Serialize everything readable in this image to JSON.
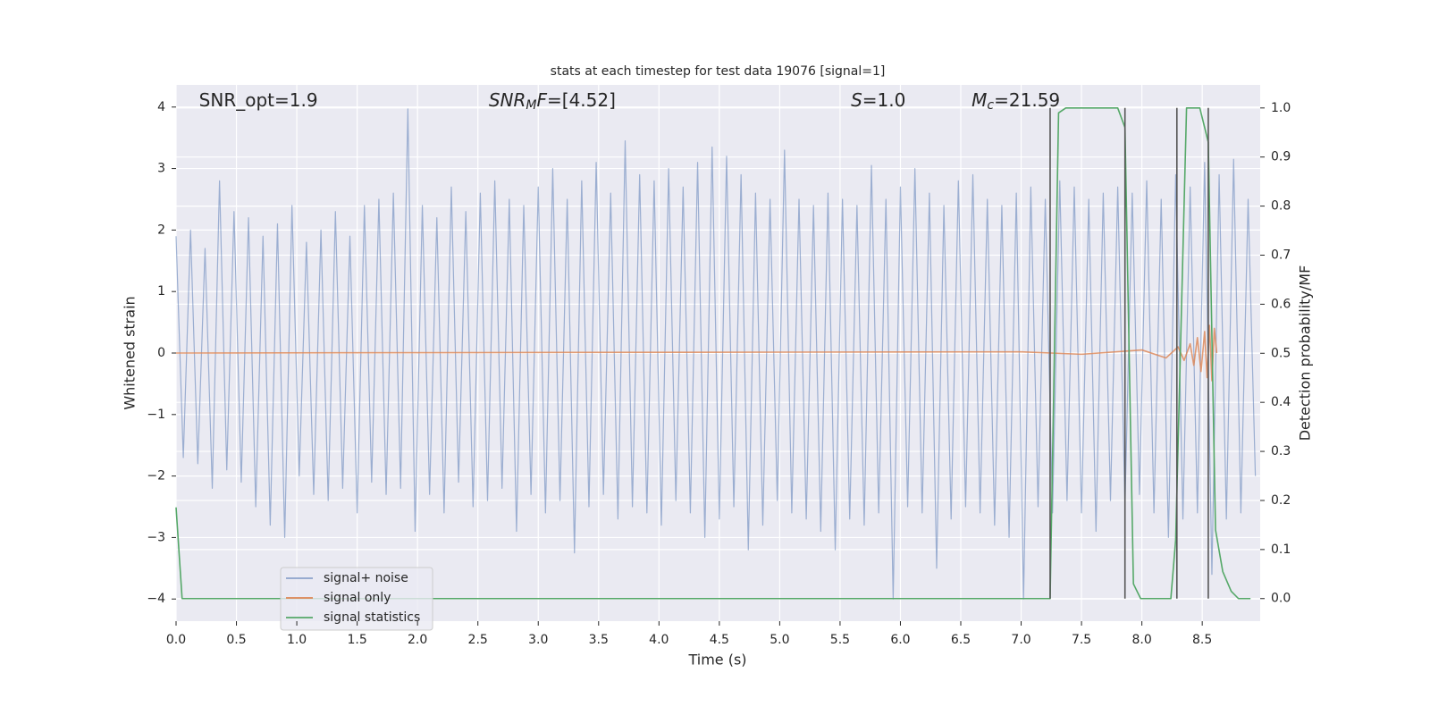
{
  "chart_data": {
    "type": "line",
    "title": "stats at each timestep for test data 19076 [signal=1]",
    "xlabel": "Time (s)",
    "ylabel": "Whitened strain",
    "y2label": "Detection probability/MF",
    "xlim": [
      0,
      8.98
    ],
    "ylim": [
      -4.36,
      4.36
    ],
    "y2lim": [
      -0.046,
      1.047
    ],
    "xticks": [
      {
        "value": 0,
        "label": "0.0"
      },
      {
        "value": 0.5,
        "label": "0.5"
      },
      {
        "value": 1,
        "label": "1.0"
      },
      {
        "value": 1.5,
        "label": "1.5"
      },
      {
        "value": 2,
        "label": "2.0"
      },
      {
        "value": 2.5,
        "label": "2.5"
      },
      {
        "value": 3,
        "label": "3.0"
      },
      {
        "value": 3.5,
        "label": "3.5"
      },
      {
        "value": 4,
        "label": "4.0"
      },
      {
        "value": 4.5,
        "label": "4.5"
      },
      {
        "value": 5,
        "label": "5.0"
      },
      {
        "value": 5.5,
        "label": "5.5"
      },
      {
        "value": 6,
        "label": "6.0"
      },
      {
        "value": 6.5,
        "label": "6.5"
      },
      {
        "value": 7,
        "label": "7.0"
      },
      {
        "value": 7.5,
        "label": "7.5"
      },
      {
        "value": 8,
        "label": "8.0"
      },
      {
        "value": 8.5,
        "label": "8.5"
      }
    ],
    "yticks": [
      {
        "value": -4,
        "label": "−4"
      },
      {
        "value": -3,
        "label": "−3"
      },
      {
        "value": -2,
        "label": "−2"
      },
      {
        "value": -1,
        "label": "−1"
      },
      0,
      1,
      2,
      3,
      4
    ],
    "y2ticks": [
      {
        "value": 0,
        "label": "0.0"
      },
      {
        "value": 0.1,
        "label": "0.1"
      },
      {
        "value": 0.2,
        "label": "0.2"
      },
      {
        "value": 0.3,
        "label": "0.3"
      },
      {
        "value": 0.4,
        "label": "0.4"
      },
      {
        "value": 0.5,
        "label": "0.5"
      },
      {
        "value": 0.6,
        "label": "0.6"
      },
      {
        "value": 0.7,
        "label": "0.7"
      },
      {
        "value": 0.8,
        "label": "0.8"
      },
      {
        "value": 0.9,
        "label": "0.9"
      },
      {
        "value": 1,
        "label": "1.0"
      }
    ],
    "grid": true,
    "series": [
      {
        "name": "signal+ noise",
        "color": "#4c72b0",
        "x": [
          0,
          0.06,
          0.12,
          0.18,
          0.24,
          0.3,
          0.36,
          0.42,
          0.48,
          0.54,
          0.6,
          0.66,
          0.72,
          0.78,
          0.84,
          0.9,
          0.96,
          1.02,
          1.08,
          1.14,
          1.2,
          1.26,
          1.32,
          1.38,
          1.44,
          1.5,
          1.56,
          1.62,
          1.68,
          1.74,
          1.8,
          1.86,
          1.92,
          1.98,
          2.04,
          2.1,
          2.16,
          2.22,
          2.28,
          2.34,
          2.4,
          2.46,
          2.52,
          2.58,
          2.64,
          2.7,
          2.76,
          2.82,
          2.88,
          2.94,
          3,
          3.06,
          3.12,
          3.18,
          3.24,
          3.3,
          3.36,
          3.42,
          3.48,
          3.54,
          3.6,
          3.66,
          3.72,
          3.78,
          3.84,
          3.9,
          3.96,
          4.02,
          4.08,
          4.14,
          4.2,
          4.26,
          4.32,
          4.38,
          4.44,
          4.5,
          4.56,
          4.62,
          4.68,
          4.74,
          4.8,
          4.86,
          4.92,
          4.98,
          5.04,
          5.1,
          5.16,
          5.22,
          5.28,
          5.34,
          5.4,
          5.46,
          5.52,
          5.58,
          5.64,
          5.7,
          5.76,
          5.82,
          5.88,
          5.94,
          6,
          6.06,
          6.12,
          6.18,
          6.24,
          6.3,
          6.36,
          6.42,
          6.48,
          6.54,
          6.6,
          6.66,
          6.72,
          6.78,
          6.84,
          6.9,
          6.96,
          7.02,
          7.08,
          7.14,
          7.2,
          7.26,
          7.32,
          7.38,
          7.44,
          7.5,
          7.56,
          7.62,
          7.68,
          7.74,
          7.8,
          7.86,
          7.92,
          7.98,
          8.04,
          8.1,
          8.16,
          8.22,
          8.28,
          8.34,
          8.4,
          8.46,
          8.52,
          8.58,
          8.64,
          8.7,
          8.76,
          8.82,
          8.88,
          8.94
        ],
        "values": [
          1.9,
          -1.7,
          2.0,
          -1.8,
          1.7,
          -2.2,
          2.8,
          -1.9,
          2.3,
          -2.1,
          2.2,
          -2.5,
          1.9,
          -2.8,
          2.1,
          -3.0,
          2.4,
          -2.0,
          1.8,
          -2.3,
          2.0,
          -2.4,
          2.3,
          -2.2,
          1.9,
          -2.6,
          2.4,
          -2.1,
          2.5,
          -2.3,
          2.6,
          -2.2,
          3.97,
          -2.9,
          2.4,
          -2.3,
          2.2,
          -2.6,
          2.7,
          -2.1,
          2.3,
          -2.5,
          2.6,
          -2.4,
          2.8,
          -2.2,
          2.5,
          -2.9,
          2.4,
          -2.3,
          2.7,
          -2.6,
          3.0,
          -2.4,
          2.5,
          -3.25,
          2.8,
          -2.5,
          3.1,
          -2.3,
          2.6,
          -2.7,
          3.45,
          -2.5,
          2.9,
          -2.6,
          2.8,
          -2.8,
          3.0,
          -2.4,
          2.7,
          -2.6,
          3.1,
          -3.0,
          3.35,
          -2.7,
          3.2,
          -2.5,
          2.9,
          -3.2,
          2.6,
          -2.8,
          2.5,
          -2.4,
          3.3,
          -2.6,
          2.5,
          -2.7,
          2.4,
          -2.9,
          2.6,
          -3.2,
          2.5,
          -2.7,
          2.4,
          -2.8,
          3.05,
          -2.6,
          2.5,
          -4.0,
          2.7,
          -2.5,
          3.0,
          -2.6,
          2.6,
          -3.5,
          2.4,
          -2.7,
          2.8,
          -2.5,
          2.9,
          -2.6,
          2.5,
          -2.8,
          2.4,
          -3.0,
          2.6,
          -4.0,
          2.7,
          -2.5,
          2.5,
          -2.6,
          2.8,
          -2.4,
          2.7,
          -2.6,
          2.5,
          -2.9,
          2.6,
          -2.4,
          2.7,
          -2.5,
          2.6,
          -2.3,
          2.8,
          -2.6,
          2.5,
          -3.0,
          2.9,
          -2.7,
          2.7,
          -2.6,
          3.1,
          -3.6,
          2.9,
          -2.7,
          3.15,
          -2.6,
          2.5,
          -2.0
        ]
      },
      {
        "name": "signal only",
        "color": "#dd8452",
        "x": [
          0,
          7.0,
          7.5,
          8.0,
          8.2,
          8.3,
          8.35,
          8.4,
          8.43,
          8.46,
          8.49,
          8.52,
          8.54,
          8.56,
          8.58,
          8.6,
          8.62
        ],
        "values": [
          0,
          0.02,
          -0.02,
          0.05,
          -0.08,
          0.1,
          -0.12,
          0.15,
          -0.2,
          0.25,
          -0.3,
          0.35,
          -0.4,
          0.45,
          -0.45,
          0.4,
          0
        ]
      },
      {
        "name": "signal statistics",
        "color": "#55a868",
        "axis": "y2",
        "x": [
          0,
          0.05,
          0.1,
          7.24,
          7.31,
          7.37,
          7.8,
          7.86,
          7.93,
          7.99,
          8.24,
          8.28,
          8.37,
          8.48,
          8.55,
          8.61,
          8.67,
          8.74,
          8.8,
          8.9
        ],
        "values": [
          0.186,
          0,
          0,
          0,
          0.99,
          1,
          1,
          0.96,
          0.03,
          0,
          0,
          0.12,
          1,
          1,
          0.93,
          0.14,
          0.055,
          0.015,
          0,
          0
        ]
      }
    ],
    "vlines": [
      7.24,
      7.86,
      8.29,
      8.55
    ],
    "vline_color": "#555555",
    "annotations": [
      {
        "x": 0.19,
        "y": 4.1,
        "parts": [
          {
            "text": "SNR_opt=1.9"
          }
        ]
      },
      {
        "x": 2.59,
        "y": 4.1,
        "parts": [
          {
            "text": "SNR",
            "italic": true
          },
          {
            "text": "M",
            "italic": true,
            "sub": true
          },
          {
            "text": "F",
            "italic": true
          },
          {
            "text": "=[4.52]"
          }
        ]
      },
      {
        "x": 5.59,
        "y": 4.1,
        "parts": [
          {
            "text": "S",
            "italic": true
          },
          {
            "text": "=1.0"
          }
        ]
      },
      {
        "x": 6.59,
        "y": 4.1,
        "parts": [
          {
            "text": "M",
            "italic": true
          },
          {
            "text": "c",
            "italic": true,
            "sub": true
          },
          {
            "text": "=21.59"
          }
        ]
      }
    ]
  }
}
